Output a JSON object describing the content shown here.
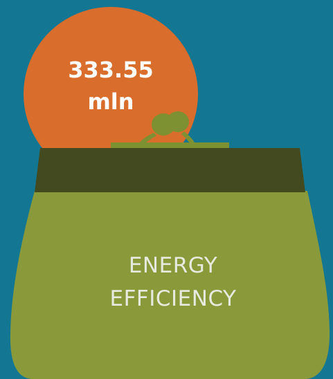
{
  "coin": {
    "value": "333.55",
    "unit": "mln"
  },
  "purse": {
    "label_line1": "ENERGY",
    "label_line2": "EFFICIENCY"
  },
  "colors": {
    "background": "#137794",
    "coin": "#d96d2b",
    "purse_body": "#8a9a3b",
    "purse_band": "#434a1f",
    "clasp": "#7e9132",
    "label_text": "#e7eadf",
    "coin_text": "#ffffff"
  },
  "icons": {
    "coin": "coin-icon",
    "purse": "purse-icon",
    "clasp": "purse-clasp-icon"
  }
}
